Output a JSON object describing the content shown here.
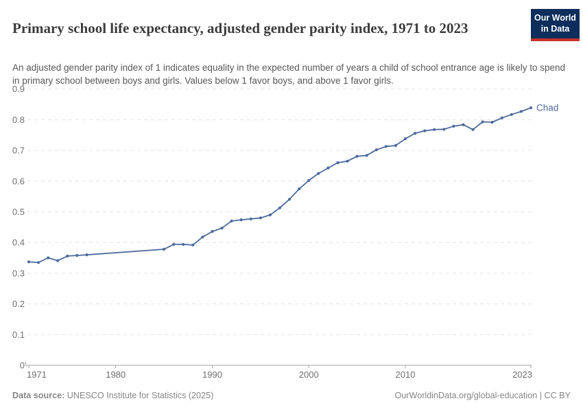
{
  "header": {
    "title": "Primary school life expectancy, adjusted gender parity index, 1971 to 2023",
    "subtitle": "An adjusted gender parity index of 1 indicates equality in the expected number of years a child of school entrance age is likely to spend in primary school between boys and girls. Values below 1 favor boys, and above 1 favor girls."
  },
  "logo": {
    "line1": "Our World",
    "line2": "in Data",
    "bg_color": "#0d2e5c",
    "accent_color": "#c5342b"
  },
  "chart_data": {
    "type": "line",
    "title": "Primary school life expectancy, adjusted gender parity index, 1971 to 2023",
    "xlabel": "",
    "ylabel": "",
    "x_range": [
      1971,
      2023
    ],
    "y_range": [
      0,
      0.9
    ],
    "x_ticks": [
      1971,
      1980,
      1990,
      2000,
      2010,
      2023
    ],
    "y_ticks": [
      0,
      0.1,
      0.2,
      0.3,
      0.4,
      0.5,
      0.6,
      0.7,
      0.8,
      0.9
    ],
    "grid": true,
    "legend": "end-of-line-label",
    "colors": {
      "grid": "#e2e2e2",
      "axis": "#a3a3a3",
      "tick_text": "#6e6e6e"
    },
    "series": [
      {
        "name": "Chad",
        "color": "#4c6a9c",
        "points": [
          [
            1971,
            0.337
          ],
          [
            1972,
            0.335
          ],
          [
            1973,
            0.35
          ],
          [
            1974,
            0.341
          ],
          [
            1975,
            0.356
          ],
          [
            1976,
            0.358
          ],
          [
            1977,
            0.36
          ],
          [
            1985,
            0.378
          ],
          [
            1986,
            0.394
          ],
          [
            1987,
            0.394
          ],
          [
            1988,
            0.392
          ],
          [
            1989,
            0.418
          ],
          [
            1990,
            0.436
          ],
          [
            1991,
            0.447
          ],
          [
            1992,
            0.47
          ],
          [
            1993,
            0.474
          ],
          [
            1994,
            0.477
          ],
          [
            1995,
            0.48
          ],
          [
            1996,
            0.49
          ],
          [
            1997,
            0.513
          ],
          [
            1998,
            0.541
          ],
          [
            1999,
            0.575
          ],
          [
            2000,
            0.602
          ],
          [
            2001,
            0.625
          ],
          [
            2002,
            0.643
          ],
          [
            2003,
            0.66
          ],
          [
            2004,
            0.665
          ],
          [
            2005,
            0.681
          ],
          [
            2006,
            0.684
          ],
          [
            2007,
            0.702
          ],
          [
            2008,
            0.713
          ],
          [
            2009,
            0.716
          ],
          [
            2010,
            0.738
          ],
          [
            2011,
            0.756
          ],
          [
            2012,
            0.764
          ],
          [
            2013,
            0.768
          ],
          [
            2014,
            0.769
          ],
          [
            2015,
            0.779
          ],
          [
            2016,
            0.784
          ],
          [
            2017,
            0.768
          ],
          [
            2018,
            0.793
          ],
          [
            2019,
            0.792
          ],
          [
            2020,
            0.806
          ],
          [
            2021,
            0.817
          ],
          [
            2022,
            0.827
          ],
          [
            2023,
            0.839
          ]
        ]
      }
    ]
  },
  "footer": {
    "source_label": "Data source:",
    "source": "UNESCO Institute for Statistics (2025)",
    "right": "OurWorldinData.org/global-education | CC BY"
  }
}
